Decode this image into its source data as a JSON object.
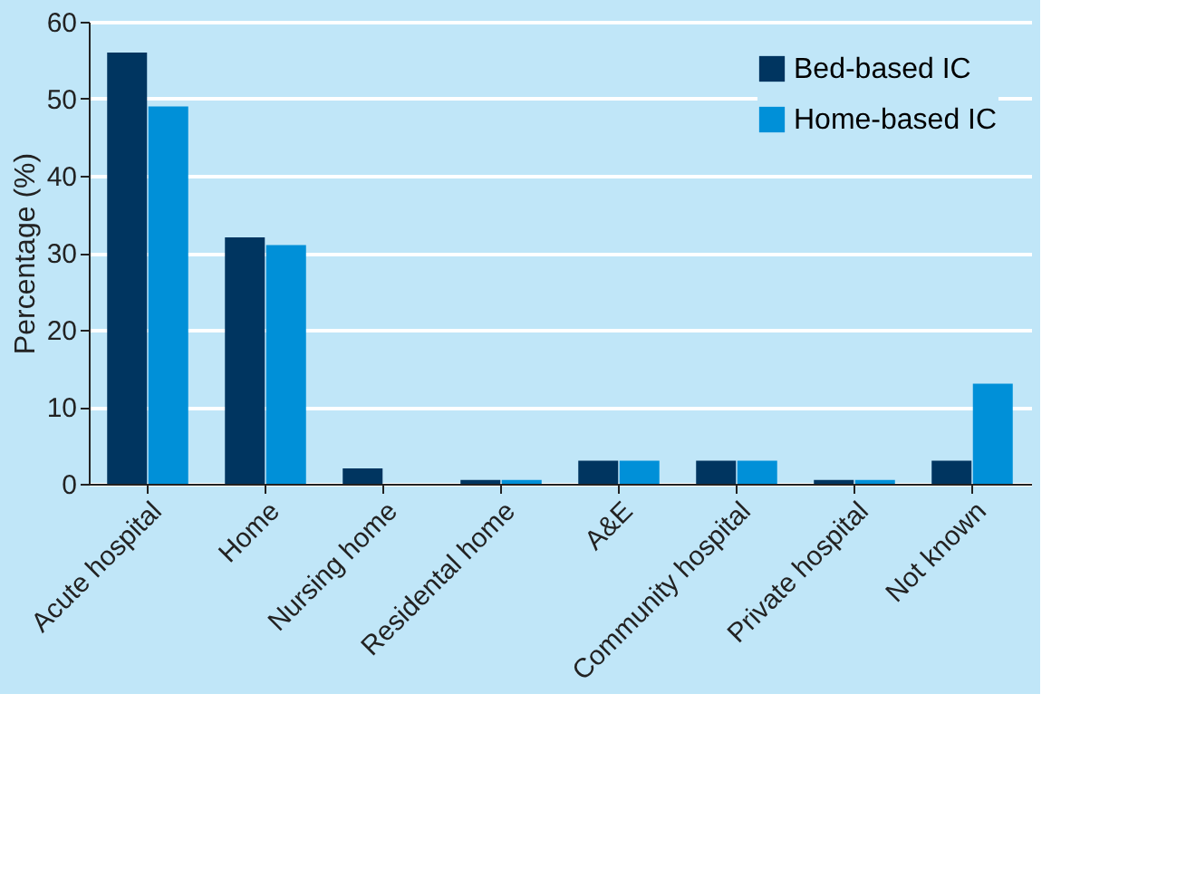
{
  "chart_data": {
    "type": "bar",
    "ylabel": "Percentage (%)",
    "categories": [
      "Acute hospital",
      "Home",
      "Nursing home",
      "Residental home",
      "A&E",
      "Community hospital",
      "Private hospital",
      "Not known"
    ],
    "series": [
      {
        "name": "Bed-based IC",
        "color": "#003560",
        "values": [
          56,
          32,
          2,
          0.5,
          3,
          3,
          0.5,
          3
        ]
      },
      {
        "name": "Home-based IC",
        "color": "#0090d8",
        "values": [
          49,
          31,
          0,
          0.5,
          3,
          3,
          0.5,
          13
        ]
      }
    ],
    "ylim": [
      0,
      60
    ],
    "yticks": [
      0,
      10,
      20,
      30,
      40,
      50,
      60
    ],
    "grid": "y",
    "legend": "top right"
  }
}
